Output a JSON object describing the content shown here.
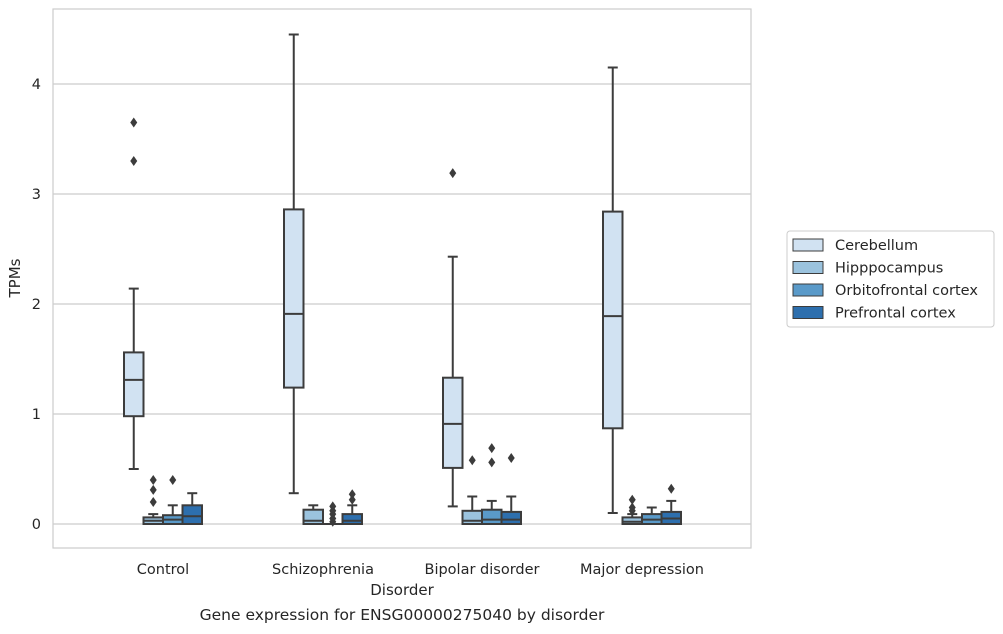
{
  "caption": "Gene expression for ENSG00000275040 by disorder",
  "chart_data": {
    "type": "boxplot",
    "title": "",
    "xlabel": "Disorder",
    "ylabel": "TPMs",
    "ylim": [
      -0.2,
      4.7
    ],
    "yticks": [
      0,
      1,
      2,
      3,
      4
    ],
    "grid": "horizontal",
    "legend_placement": "right",
    "categories": [
      "Control",
      "Schizophrenia",
      "Bipolar disorder",
      "Major depression"
    ],
    "series": [
      {
        "name": "Cerebellum",
        "color": "#d1e2f2",
        "boxes": [
          {
            "whislo": 0.5,
            "q1": 0.98,
            "med": 1.31,
            "q3": 1.56,
            "whishi": 2.14,
            "fliers": [
              3.3,
              3.65
            ]
          },
          {
            "whislo": 0.28,
            "q1": 1.24,
            "med": 1.91,
            "q3": 2.86,
            "whishi": 4.45,
            "fliers": []
          },
          {
            "whislo": 0.16,
            "q1": 0.51,
            "med": 0.91,
            "q3": 1.33,
            "whishi": 2.43,
            "fliers": [
              3.19
            ]
          },
          {
            "whislo": 0.1,
            "q1": 0.87,
            "med": 1.89,
            "q3": 2.84,
            "whishi": 4.15,
            "fliers": []
          }
        ]
      },
      {
        "name": "Hipppocampus",
        "color": "#9bc3de",
        "boxes": [
          {
            "whislo": 0.0,
            "q1": 0.0,
            "med": 0.03,
            "q3": 0.06,
            "whishi": 0.09,
            "fliers": [
              0.2,
              0.31,
              0.4
            ]
          },
          {
            "whislo": 0.0,
            "q1": 0.0,
            "med": 0.03,
            "q3": 0.13,
            "whishi": 0.17,
            "fliers": []
          },
          {
            "whislo": 0.0,
            "q1": 0.0,
            "med": 0.03,
            "q3": 0.12,
            "whishi": 0.25,
            "fliers": [
              0.58
            ]
          },
          {
            "whislo": 0.0,
            "q1": 0.0,
            "med": 0.02,
            "q3": 0.06,
            "whishi": 0.09,
            "fliers": [
              0.12,
              0.15,
              0.22
            ]
          }
        ]
      },
      {
        "name": "Orbitofrontal cortex",
        "color": "#5a9ac9",
        "boxes": [
          {
            "whislo": 0.0,
            "q1": 0.0,
            "med": 0.04,
            "q3": 0.08,
            "whishi": 0.17,
            "fliers": [
              0.4
            ]
          },
          {
            "whislo": 0.0,
            "q1": 0.0,
            "med": 0.0,
            "q3": 0.0,
            "whishi": 0.0,
            "fliers": [
              0.02,
              0.05,
              0.09,
              0.12,
              0.16
            ]
          },
          {
            "whislo": 0.0,
            "q1": 0.0,
            "med": 0.04,
            "q3": 0.13,
            "whishi": 0.21,
            "fliers": [
              0.56,
              0.69
            ]
          },
          {
            "whislo": 0.0,
            "q1": 0.0,
            "med": 0.04,
            "q3": 0.09,
            "whishi": 0.15,
            "fliers": []
          }
        ]
      },
      {
        "name": "Prefrontal cortex",
        "color": "#2d6fae",
        "boxes": [
          {
            "whislo": 0.0,
            "q1": 0.0,
            "med": 0.07,
            "q3": 0.17,
            "whishi": 0.28,
            "fliers": []
          },
          {
            "whislo": 0.0,
            "q1": 0.0,
            "med": 0.03,
            "q3": 0.09,
            "whishi": 0.17,
            "fliers": [
              0.22,
              0.27
            ]
          },
          {
            "whislo": 0.0,
            "q1": 0.0,
            "med": 0.04,
            "q3": 0.11,
            "whishi": 0.25,
            "fliers": [
              0.6
            ]
          },
          {
            "whislo": 0.0,
            "q1": 0.0,
            "med": 0.05,
            "q3": 0.11,
            "whishi": 0.21,
            "fliers": [
              0.32
            ]
          }
        ]
      }
    ]
  }
}
